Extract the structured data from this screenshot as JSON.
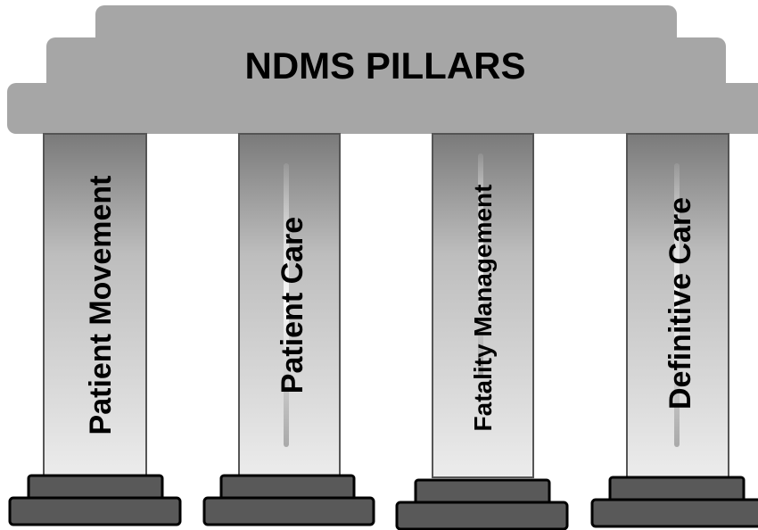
{
  "title": "NDMS PILLARS",
  "pillars": [
    {
      "label": "Patient Movement"
    },
    {
      "label": "Patient Care"
    },
    {
      "label": "Fatality Management"
    },
    {
      "label": "Definitive Care"
    }
  ],
  "colors": {
    "roof": "#a6a6a6",
    "roof_outline": "#8a8a8a",
    "column_light": "#e6e6e6",
    "column_dark": "#7a7a7a",
    "base": "#595959",
    "base_outline": "#000000",
    "text": "#000000"
  }
}
